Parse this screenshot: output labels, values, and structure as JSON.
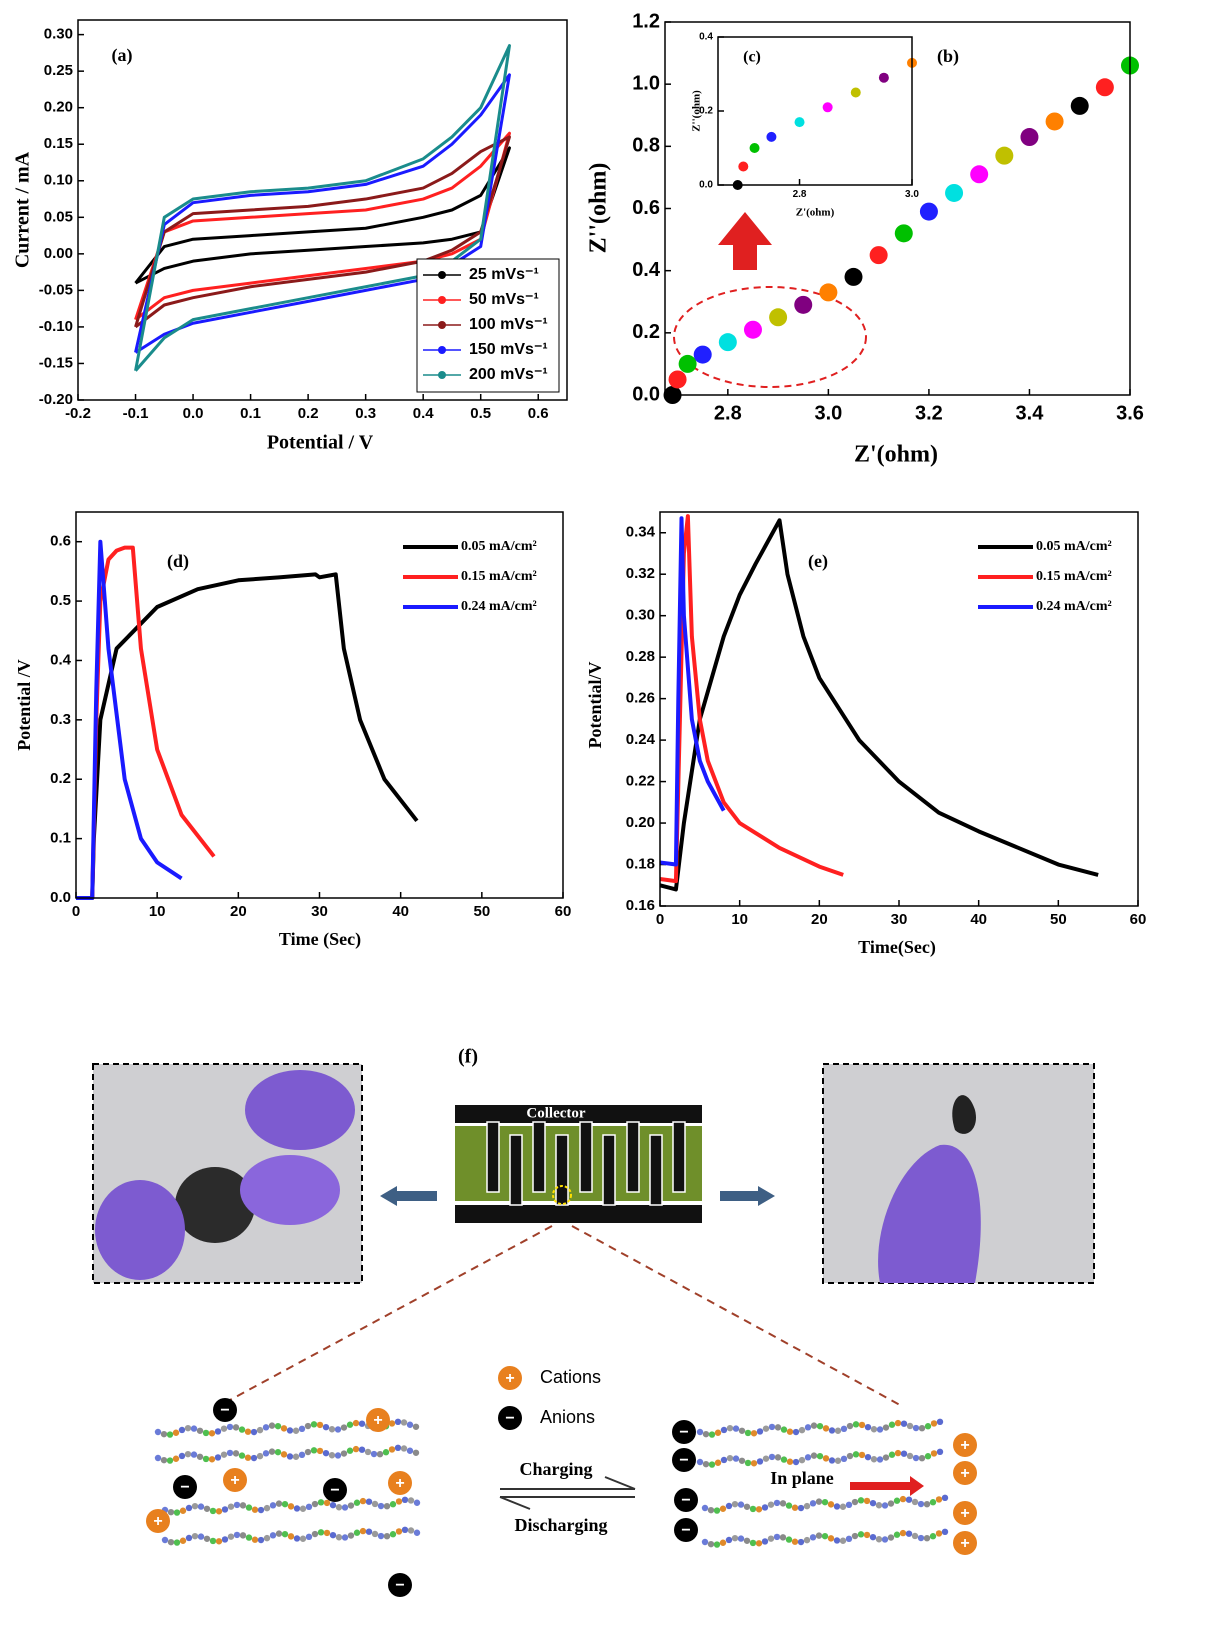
{
  "chart_data": [
    {
      "type": "line",
      "panel_label": "(a)",
      "x_label": "Potential / V",
      "y_label": "Current / mA",
      "x": [
        -0.1,
        -0.05,
        0,
        0.1,
        0.2,
        0.3,
        0.4,
        0.45,
        0.5,
        0.55,
        0.5,
        0.45,
        0.4,
        0.3,
        0.2,
        0.1,
        0,
        -0.05,
        -0.1
      ],
      "series": [
        {
          "name": "25 mVs⁻¹",
          "color": "#000000",
          "values": [
            -0.04,
            0.01,
            0.02,
            0.025,
            0.03,
            0.035,
            0.05,
            0.06,
            0.08,
            0.145,
            0.03,
            0.02,
            0.015,
            0.01,
            0.005,
            0,
            -0.01,
            -0.02,
            -0.04
          ]
        },
        {
          "name": "50 mVs⁻¹",
          "color": "#ff2020",
          "values": [
            -0.09,
            0.03,
            0.045,
            0.05,
            0.055,
            0.06,
            0.075,
            0.09,
            0.12,
            0.165,
            0.02,
            0,
            -0.01,
            -0.02,
            -0.03,
            -0.04,
            -0.05,
            -0.06,
            -0.09
          ]
        },
        {
          "name": "100 mVs⁻¹",
          "color": "#8b1a1a",
          "values": [
            -0.1,
            0.03,
            0.055,
            0.06,
            0.065,
            0.075,
            0.09,
            0.11,
            0.14,
            0.16,
            0.03,
            0.005,
            -0.01,
            -0.025,
            -0.035,
            -0.045,
            -0.06,
            -0.07,
            -0.1
          ]
        },
        {
          "name": "150 mVs⁻¹",
          "color": "#1a1aff",
          "values": [
            -0.135,
            0.04,
            0.07,
            0.08,
            0.085,
            0.095,
            0.12,
            0.15,
            0.19,
            0.245,
            0.01,
            -0.015,
            -0.035,
            -0.05,
            -0.065,
            -0.08,
            -0.095,
            -0.11,
            -0.135
          ]
        },
        {
          "name": "200 mVs⁻¹",
          "color": "#1a8c8c",
          "values": [
            -0.16,
            0.05,
            0.075,
            0.085,
            0.09,
            0.1,
            0.13,
            0.16,
            0.2,
            0.285,
            0.02,
            -0.01,
            -0.03,
            -0.045,
            -0.06,
            -0.075,
            -0.09,
            -0.115,
            -0.16
          ]
        }
      ],
      "xlim": [
        -0.2,
        0.65
      ],
      "ylim": [
        -0.2,
        0.32
      ],
      "xticks": [
        -0.2,
        -0.1,
        {
          "value": 0,
          "label": "0.0"
        },
        0.1,
        0.2,
        0.3,
        0.4,
        0.5,
        0.6
      ],
      "yticks": [
        {
          "value": -0.2,
          "label": "-0.20"
        },
        {
          "value": -0.15,
          "label": "-0.15"
        },
        {
          "value": -0.1,
          "label": "-0.10"
        },
        {
          "value": -0.05,
          "label": "-0.05"
        },
        {
          "value": 0,
          "label": "0.00"
        },
        {
          "value": 0.05,
          "label": "0.05"
        },
        {
          "value": 0.1,
          "label": "0.10"
        },
        {
          "value": 0.15,
          "label": "0.15"
        },
        {
          "value": 0.2,
          "label": "0.20"
        },
        {
          "value": 0.25,
          "label": "0.25"
        },
        {
          "value": 0.3,
          "label": "0.30"
        }
      ],
      "legend": "lower right",
      "grid": false
    },
    {
      "type": "scatter",
      "panel_label": "(b)",
      "x_label": "Z'(ohm)",
      "y_label": "Z''(ohm)",
      "x": [
        2.69,
        2.7,
        2.72,
        2.75,
        2.8,
        2.85,
        2.9,
        2.95,
        3.0,
        3.05,
        3.1,
        3.15,
        3.2,
        3.25,
        3.3,
        3.35,
        3.4,
        3.45,
        3.5,
        3.55,
        3.6
      ],
      "values": [
        0.0,
        0.05,
        0.1,
        0.13,
        0.17,
        0.21,
        0.25,
        0.29,
        0.33,
        0.38,
        0.45,
        0.52,
        0.59,
        0.65,
        0.71,
        0.77,
        0.83,
        0.88,
        0.93,
        0.99,
        1.06
      ],
      "colors": [
        "#000000",
        "#ff2020",
        "#00c000",
        "#2020ff",
        "#00e0e0",
        "#ff00ff",
        "#c0c000",
        "#800080",
        "#ff8000"
      ],
      "xlim": [
        2.675,
        3.6
      ],
      "ylim": [
        0,
        1.2
      ],
      "xticks": [
        2.8,
        {
          "value": 3,
          "label": "3.0"
        },
        3.2,
        3.4,
        3.6
      ],
      "yticks": [
        {
          "value": 0,
          "label": "0.0"
        },
        0.2,
        0.4,
        0.6,
        0.8,
        {
          "value": 1,
          "label": "1.0"
        },
        1.2
      ],
      "grid": false
    },
    {
      "type": "scatter",
      "panel_label": "(c)",
      "x_label": "Z'(ohm)",
      "y_label": "Z''(ohm)",
      "x": [
        2.69,
        2.7,
        2.72,
        2.75,
        2.8,
        2.85,
        2.9,
        2.95,
        3.0
      ],
      "values": [
        0.0,
        0.05,
        0.1,
        0.13,
        0.17,
        0.21,
        0.25,
        0.29,
        0.33
      ],
      "colors": [
        "#000000",
        "#ff2020",
        "#00c000",
        "#2020ff",
        "#00e0e0",
        "#ff00ff",
        "#c0c000",
        "#800080",
        "#ff8000"
      ],
      "xlim": [
        2.655,
        3.0
      ],
      "ylim": [
        0,
        0.4
      ],
      "xticks": [
        2.8,
        {
          "value": 3,
          "label": "3.0"
        }
      ],
      "yticks": [
        {
          "value": 0,
          "label": "0.0"
        },
        0.2,
        0.4
      ],
      "grid": false
    },
    {
      "type": "line",
      "panel_label": "(d)",
      "x_label": "Time (Sec)",
      "y_label": "Potential /V",
      "series": [
        {
          "name": "0.05 mA/cm²",
          "color": "#000000",
          "x": [
            0,
            2,
            2.2,
            3,
            5,
            10,
            15,
            20,
            25,
            29.5,
            30,
            32,
            33,
            35,
            38,
            42
          ],
          "values": [
            0,
            0,
            0.1,
            0.3,
            0.42,
            0.49,
            0.52,
            0.535,
            0.54,
            0.545,
            0.54,
            0.545,
            0.42,
            0.3,
            0.2,
            0.13
          ]
        },
        {
          "name": "0.15 mA/cm²",
          "color": "#ff2020",
          "x": [
            0,
            2,
            2.5,
            3,
            4,
            5,
            6,
            7,
            8,
            10,
            13,
            17
          ],
          "values": [
            0,
            0,
            0.3,
            0.5,
            0.57,
            0.585,
            0.59,
            0.59,
            0.42,
            0.25,
            0.14,
            0.07
          ]
        },
        {
          "name": "0.24 mA/cm²",
          "color": "#1a1aff",
          "x": [
            0,
            2,
            2.5,
            3,
            4,
            6,
            8,
            10,
            13
          ],
          "values": [
            0,
            0,
            0.35,
            0.6,
            0.42,
            0.2,
            0.1,
            0.06,
            0.033
          ]
        }
      ],
      "xlim": [
        0,
        60
      ],
      "ylim": [
        0,
        0.65
      ],
      "xticks": [
        0,
        10,
        20,
        30,
        40,
        50,
        60
      ],
      "yticks": [
        {
          "value": 0,
          "label": "0.0"
        },
        0.1,
        0.2,
        0.3,
        0.4,
        0.5,
        0.6
      ],
      "legend": "upper right",
      "grid": false
    },
    {
      "type": "line",
      "panel_label": "(e)",
      "x_label": "Time(Sec)",
      "y_label": "Potential/V",
      "series": [
        {
          "name": "0.05 mA/cm²",
          "color": "#000000",
          "x": [
            0,
            2,
            3,
            5,
            8,
            10,
            12,
            15,
            16,
            18,
            20,
            25,
            30,
            35,
            40,
            45,
            50,
            55
          ],
          "values": [
            0.17,
            0.168,
            0.2,
            0.25,
            0.29,
            0.31,
            0.325,
            0.346,
            0.32,
            0.29,
            0.27,
            0.24,
            0.22,
            0.205,
            0.196,
            0.188,
            0.18,
            0.175
          ]
        },
        {
          "name": "0.15  mA/cm²",
          "color": "#ff2020",
          "x": [
            0,
            2,
            2.5,
            3,
            3.5,
            4,
            5,
            6,
            8,
            10,
            15,
            20,
            23
          ],
          "values": [
            0.173,
            0.172,
            0.25,
            0.33,
            0.348,
            0.29,
            0.25,
            0.23,
            0.21,
            0.2,
            0.188,
            0.179,
            0.175
          ]
        },
        {
          "name": "0.24 mA/cm²",
          "color": "#1a1aff",
          "x": [
            0,
            2,
            2.3,
            2.7,
            3,
            4,
            5,
            6,
            8
          ],
          "values": [
            0.181,
            0.18,
            0.26,
            0.347,
            0.3,
            0.25,
            0.23,
            0.22,
            0.206
          ]
        }
      ],
      "xlim": [
        0,
        60
      ],
      "ylim": [
        0.16,
        0.35
      ],
      "xticks": [
        0,
        10,
        20,
        30,
        40,
        50,
        60
      ],
      "yticks": [
        0.16,
        0.18,
        {
          "value": 0.2,
          "label": "0.20"
        },
        0.22,
        0.24,
        0.26,
        0.28,
        {
          "value": 0.3,
          "label": "0.30"
        },
        0.32,
        0.34
      ],
      "legend": "upper right",
      "grid": false
    }
  ],
  "diagram": {
    "label": "(f)",
    "collector": "Collector",
    "cations": "Cations",
    "anions": "Anions",
    "charging": "Charging",
    "discharging": "Discharging",
    "in_plane": "In plane",
    "cation_symbol": "+",
    "anion_symbol": "−"
  }
}
